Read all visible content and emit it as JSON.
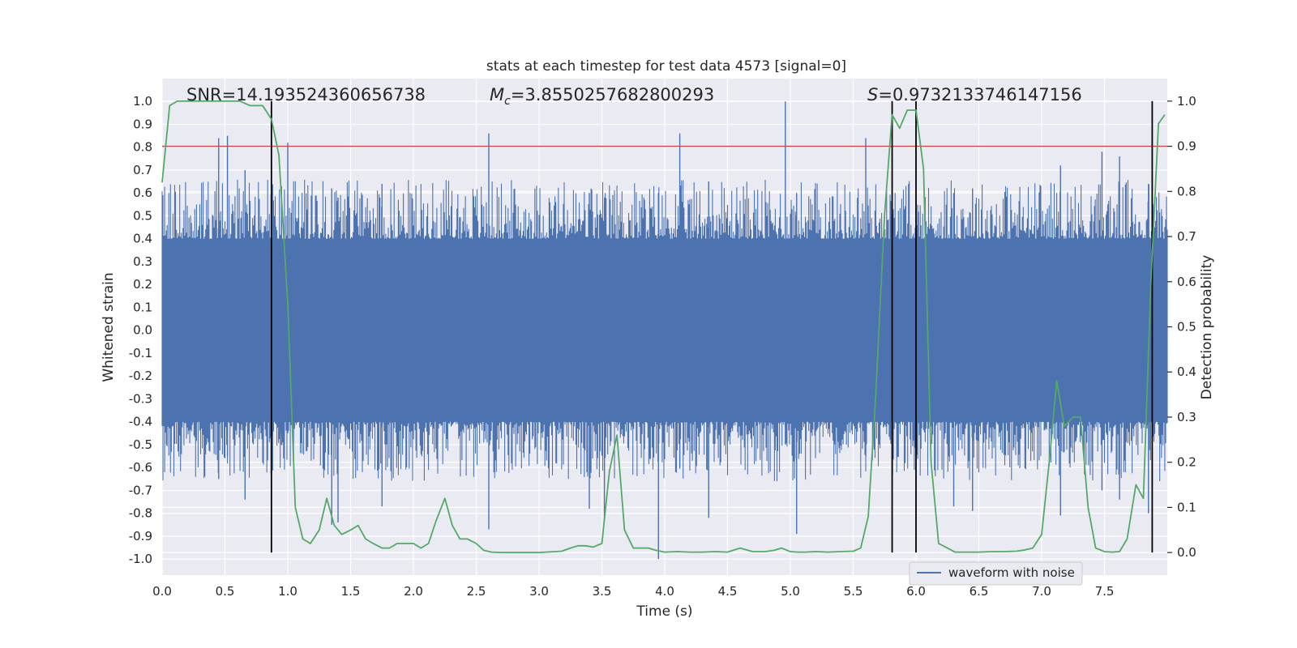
{
  "chart_data": {
    "type": "line",
    "title": "stats at each timestep for test data 4573 [signal=0]",
    "xlabel": "Time (s)",
    "ylabel": "Whitened strain",
    "y2label": "Detection probability",
    "xlim": [
      0.0,
      8.0
    ],
    "ylim": [
      -1.07,
      1.1
    ],
    "y2lim": [
      -0.05,
      1.05
    ],
    "x_ticks": [
      0.0,
      0.5,
      1.0,
      1.5,
      2.0,
      2.5,
      3.0,
      3.5,
      4.0,
      4.5,
      5.0,
      5.5,
      6.0,
      6.5,
      7.0,
      7.5
    ],
    "x_tick_labels": [
      "0.0",
      "0.5",
      "1.0",
      "1.5",
      "2.0",
      "2.5",
      "3.0",
      "3.5",
      "4.0",
      "4.5",
      "5.0",
      "5.5",
      "6.0",
      "6.5",
      "7.0",
      "7.5"
    ],
    "y_ticks": [
      1.0,
      0.9,
      0.8,
      0.7,
      0.6,
      0.5,
      0.4,
      0.3,
      0.2,
      0.1,
      0.0,
      -0.1,
      -0.2,
      -0.3,
      -0.4,
      -0.5,
      -0.6,
      -0.7,
      -0.8,
      -0.9,
      -1.0
    ],
    "y_tick_labels": [
      "1.0",
      "0.9",
      "0.8",
      "0.7",
      "0.6",
      "0.5",
      "0.4",
      "0.3",
      "0.2",
      "0.1",
      "0.0",
      "-0.1",
      "-0.2",
      "-0.3",
      "-0.4",
      "-0.5",
      "-0.6",
      "-0.7",
      "-0.8",
      "-0.9",
      "-1.0"
    ],
    "y2_ticks": [
      1.0,
      0.9,
      0.8,
      0.7,
      0.6,
      0.5,
      0.4,
      0.3,
      0.2,
      0.1,
      0.0
    ],
    "y2_tick_labels": [
      "1.0",
      "0.9",
      "0.8",
      "0.7",
      "0.6",
      "0.5",
      "0.4",
      "0.3",
      "0.2",
      "0.1",
      "0.0"
    ],
    "grid": true,
    "annotations": {
      "snr": "SNR=14.193524360656738",
      "mc_symbol": "M",
      "mc_sub": "c",
      "mc_value": "=3.8550257682800293",
      "s_symbol": "S",
      "s_value": "=0.9732133746147156"
    },
    "threshold": {
      "y2": 0.9,
      "color": "#c44e52"
    },
    "vertical_lines": [
      0.87,
      5.81,
      6.0,
      7.88
    ],
    "legend": {
      "label": "waveform with noise",
      "position": "lower-right"
    },
    "series": [
      {
        "name": "waveform with noise",
        "axis": "left",
        "color": "#4c72b0",
        "core_amplitude": 0.4,
        "spikes": [
          {
            "x": 0.45,
            "hi": 0.84,
            "lo": -0.65
          },
          {
            "x": 0.52,
            "hi": 0.85,
            "lo": -0.55
          },
          {
            "x": 0.66,
            "hi": 0.7,
            "lo": -0.74
          },
          {
            "x": 0.95,
            "hi": 0.63,
            "lo": -0.5
          },
          {
            "x": 1.0,
            "hi": 0.82,
            "lo": -0.45
          },
          {
            "x": 1.35,
            "hi": 0.62,
            "lo": -0.85
          },
          {
            "x": 1.4,
            "hi": 0.58,
            "lo": -0.84
          },
          {
            "x": 1.75,
            "hi": 0.64,
            "lo": -0.77
          },
          {
            "x": 2.6,
            "hi": 0.86,
            "lo": -0.87
          },
          {
            "x": 3.4,
            "hi": 0.6,
            "lo": -0.78
          },
          {
            "x": 3.52,
            "hi": 0.55,
            "lo": -0.83
          },
          {
            "x": 3.95,
            "hi": 0.6,
            "lo": -1.0
          },
          {
            "x": 4.12,
            "hi": 0.86,
            "lo": -0.6
          },
          {
            "x": 4.35,
            "hi": 0.65,
            "lo": -0.82
          },
          {
            "x": 4.96,
            "hi": 1.0,
            "lo": -0.5
          },
          {
            "x": 5.05,
            "hi": 0.6,
            "lo": -0.89
          },
          {
            "x": 5.6,
            "hi": 0.84,
            "lo": -0.55
          },
          {
            "x": 6.3,
            "hi": 0.6,
            "lo": -0.77
          },
          {
            "x": 6.45,
            "hi": 0.62,
            "lo": -0.79
          },
          {
            "x": 7.15,
            "hi": 0.72,
            "lo": -0.81
          },
          {
            "x": 7.48,
            "hi": 0.78,
            "lo": -0.7
          },
          {
            "x": 7.62,
            "hi": 0.76,
            "lo": -0.74
          },
          {
            "x": 7.85,
            "hi": 0.64,
            "lo": -0.8
          }
        ]
      },
      {
        "name": "",
        "axis": "right",
        "color": "#55a868",
        "x": [
          0.0,
          0.06,
          0.12,
          0.25,
          0.5,
          0.62,
          0.7,
          0.8,
          0.87,
          0.93,
          1.0,
          1.06,
          1.12,
          1.18,
          1.25,
          1.31,
          1.37,
          1.43,
          1.5,
          1.56,
          1.62,
          1.68,
          1.75,
          1.81,
          1.87,
          1.93,
          2.0,
          2.06,
          2.12,
          2.18,
          2.25,
          2.31,
          2.37,
          2.43,
          2.5,
          2.56,
          2.62,
          2.7,
          2.8,
          3.0,
          3.18,
          3.25,
          3.31,
          3.37,
          3.43,
          3.5,
          3.56,
          3.62,
          3.68,
          3.75,
          3.8,
          3.87,
          3.93,
          4.0,
          4.1,
          4.2,
          4.3,
          4.4,
          4.5,
          4.6,
          4.7,
          4.8,
          4.87,
          4.93,
          5.0,
          5.06,
          5.12,
          5.2,
          5.3,
          5.4,
          5.5,
          5.56,
          5.62,
          5.68,
          5.75,
          5.81,
          5.87,
          5.93,
          6.0,
          6.06,
          6.12,
          6.18,
          6.25,
          6.31,
          6.4,
          6.5,
          6.6,
          6.7,
          6.8,
          6.87,
          6.93,
          7.0,
          7.06,
          7.12,
          7.18,
          7.25,
          7.31,
          7.37,
          7.43,
          7.5,
          7.56,
          7.62,
          7.68,
          7.75,
          7.81,
          7.87,
          7.93,
          7.98
        ],
        "y": [
          0.82,
          0.99,
          1.0,
          1.0,
          1.0,
          1.0,
          0.99,
          0.99,
          0.96,
          0.88,
          0.55,
          0.1,
          0.03,
          0.02,
          0.05,
          0.12,
          0.06,
          0.04,
          0.05,
          0.06,
          0.03,
          0.02,
          0.01,
          0.01,
          0.02,
          0.02,
          0.02,
          0.01,
          0.02,
          0.07,
          0.12,
          0.06,
          0.03,
          0.03,
          0.02,
          0.005,
          0.001,
          0.0,
          0.0,
          0.0,
          0.003,
          0.01,
          0.015,
          0.015,
          0.012,
          0.02,
          0.18,
          0.26,
          0.05,
          0.01,
          0.01,
          0.01,
          0.005,
          0.001,
          0.002,
          0.001,
          0.001,
          0.002,
          0.001,
          0.01,
          0.002,
          0.002,
          0.005,
          0.01,
          0.002,
          0.001,
          0.001,
          0.002,
          0.001,
          0.002,
          0.003,
          0.01,
          0.08,
          0.35,
          0.75,
          0.97,
          0.94,
          0.98,
          0.98,
          0.85,
          0.2,
          0.02,
          0.01,
          0.001,
          0.001,
          0.001,
          0.002,
          0.002,
          0.003,
          0.006,
          0.01,
          0.04,
          0.2,
          0.38,
          0.28,
          0.3,
          0.3,
          0.1,
          0.01,
          0.002,
          0.001,
          0.002,
          0.03,
          0.15,
          0.12,
          0.6,
          0.95,
          0.97
        ]
      }
    ]
  }
}
